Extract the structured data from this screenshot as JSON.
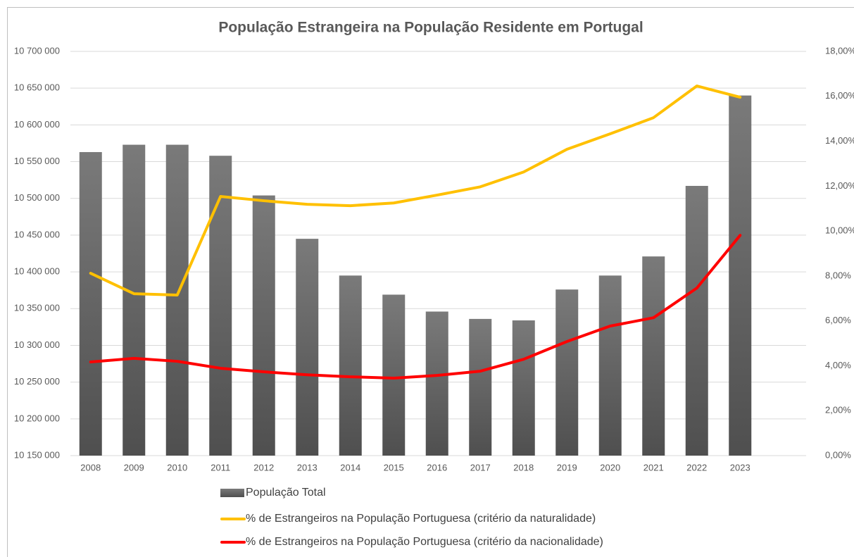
{
  "chart_data": {
    "type": "bar",
    "title": "População Estrangeira na População Residente em Portugal",
    "categories": [
      "2008",
      "2009",
      "2010",
      "2011",
      "2012",
      "2013",
      "2014",
      "2015",
      "2016",
      "2017",
      "2018",
      "2019",
      "2020",
      "2021",
      "2022",
      "2023"
    ],
    "series": [
      {
        "name": "População Total",
        "type": "bar",
        "axis": "y",
        "color": "#666666",
        "values": [
          10563000,
          10573000,
          10573000,
          10558000,
          10504000,
          10445000,
          10395000,
          10369000,
          10346000,
          10336000,
          10334000,
          10376000,
          10395000,
          10421000,
          10517000,
          10640000
        ]
      },
      {
        "name": "% de Estrangeiros na População Portuguesa (critério da naturalidade)",
        "type": "line",
        "axis": "y2",
        "color": "#ffc000",
        "values": [
          8.12,
          7.21,
          7.15,
          11.54,
          11.35,
          11.19,
          11.13,
          11.25,
          11.6,
          11.97,
          12.63,
          13.64,
          14.33,
          15.05,
          16.46,
          15.96
        ]
      },
      {
        "name": "% de Estrangeiros na População Portuguesa (critério da nacionalidade)",
        "type": "line",
        "axis": "y2",
        "color": "#ff0000",
        "values": [
          4.17,
          4.33,
          4.2,
          3.89,
          3.73,
          3.6,
          3.51,
          3.45,
          3.57,
          3.76,
          4.29,
          5.08,
          5.77,
          6.14,
          7.46,
          9.81
        ]
      }
    ],
    "ylim": [
      10150000,
      10700000
    ],
    "yticks": [
      {
        "value": 10150000,
        "label": "10 150 000"
      },
      {
        "value": 10200000,
        "label": "10 200 000"
      },
      {
        "value": 10250000,
        "label": "10 250 000"
      },
      {
        "value": 10300000,
        "label": "10 300 000"
      },
      {
        "value": 10350000,
        "label": "10 350 000"
      },
      {
        "value": 10400000,
        "label": "10 400 000"
      },
      {
        "value": 10450000,
        "label": "10 450 000"
      },
      {
        "value": 10500000,
        "label": "10 500 000"
      },
      {
        "value": 10550000,
        "label": "10 550 000"
      },
      {
        "value": 10600000,
        "label": "10 600 000"
      },
      {
        "value": 10650000,
        "label": "10 650 000"
      },
      {
        "value": 10700000,
        "label": "10 700 000"
      }
    ],
    "y2lim": [
      0,
      18
    ],
    "y2ticks": [
      {
        "value": 0,
        "label": "0,00%"
      },
      {
        "value": 2,
        "label": "2,00%"
      },
      {
        "value": 4,
        "label": "4,00%"
      },
      {
        "value": 6,
        "label": "6,00%"
      },
      {
        "value": 8,
        "label": "8,00%"
      },
      {
        "value": 10,
        "label": "10,00%"
      },
      {
        "value": 12,
        "label": "12,00%"
      },
      {
        "value": 14,
        "label": "14,00%"
      },
      {
        "value": 16,
        "label": "16,00%"
      },
      {
        "value": 18,
        "label": "18,00%"
      }
    ],
    "grid": true
  }
}
